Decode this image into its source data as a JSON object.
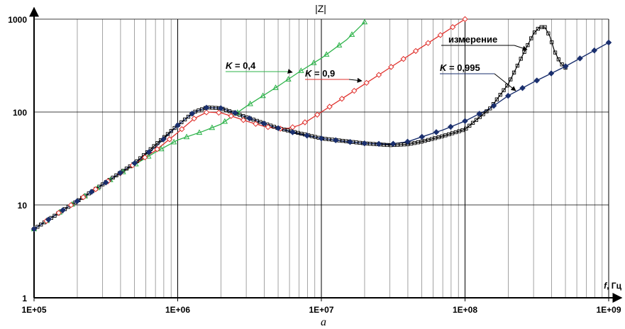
{
  "chart_data": {
    "type": "line",
    "title": "|Z|",
    "caption": "a",
    "x_scale": "log",
    "y_scale": "log",
    "xlim": [
      100000,
      1000000000
    ],
    "ylim": [
      1,
      1000
    ],
    "grid": true,
    "xlabel_italic": "f",
    "xlabel_rest": ", Гц",
    "x_ticks": [
      {
        "value": 100000,
        "label": "1E+05"
      },
      {
        "value": 1000000,
        "label": "1E+06"
      },
      {
        "value": 10000000,
        "label": "1E+07"
      },
      {
        "value": 100000000,
        "label": "1E+08"
      },
      {
        "value": 1000000000,
        "label": "1E+09"
      }
    ],
    "y_ticks": [
      {
        "value": 1,
        "label": "1"
      },
      {
        "value": 10,
        "label": "10"
      },
      {
        "value": 100,
        "label": "100"
      },
      {
        "value": 1000,
        "label": "1000"
      }
    ],
    "series": [
      {
        "key": "k04",
        "label_k": "K",
        "label_rest": " = 0,4",
        "color": "#2db34a",
        "marker": "triangle",
        "x": [
          100000,
          150000,
          200000,
          300000,
          500000,
          700000,
          1000000,
          1500000,
          2000000,
          3000000,
          5000000,
          7000000,
          10000000,
          15000000,
          20000000
        ],
        "y": [
          5.5,
          8.3,
          11,
          16.5,
          27,
          37,
          50,
          62,
          74,
          115,
          190,
          270,
          380,
          600,
          930
        ]
      },
      {
        "key": "k09",
        "label_k": "K",
        "label_rest": " = 0,9",
        "color": "#e0302c",
        "marker": "diamond-open",
        "x": [
          100000,
          150000,
          200000,
          300000,
          500000,
          700000,
          1000000,
          1300000,
          1600000,
          2000000,
          2500000,
          3000000,
          4000000,
          5000000,
          6000000,
          7000000,
          8000000,
          10000000,
          15000000,
          20000000,
          30000000,
          50000000,
          70000000,
          100000000
        ],
        "y": [
          5.5,
          8.3,
          11,
          16.5,
          27.5,
          38.5,
          60,
          85,
          100,
          98,
          88,
          80,
          70,
          66,
          67,
          72,
          80,
          100,
          150,
          200,
          300,
          500,
          700,
          1000
        ]
      },
      {
        "key": "k0995",
        "label_k": "K",
        "label_rest": " = 0,995",
        "color": "#1a2f6e",
        "marker": "diamond-filled",
        "x": [
          100000,
          150000,
          200000,
          300000,
          500000,
          700000,
          1000000,
          1300000,
          1600000,
          2000000,
          2500000,
          3000000,
          4000000,
          5000000,
          7000000,
          10000000,
          15000000,
          20000000,
          30000000,
          40000000,
          50000000,
          70000000,
          100000000,
          150000000,
          200000000,
          300000000,
          500000000,
          1000000000
        ],
        "y": [
          5.5,
          8.3,
          11,
          16.5,
          28,
          42,
          72,
          100,
          112,
          110,
          98,
          88,
          75,
          67,
          58,
          52,
          48,
          46,
          45,
          48,
          54,
          64,
          80,
          110,
          150,
          210,
          310,
          560
        ]
      },
      {
        "key": "meas",
        "label_k": "",
        "label_rest": "измерение",
        "color": "#000000",
        "marker": "square-open",
        "x": [
          100000,
          200000,
          500000,
          1000000,
          1300000,
          1600000,
          2000000,
          3000000,
          5000000,
          10000000,
          20000000,
          30000000,
          40000000,
          50000000,
          70000000,
          100000000,
          150000000,
          200000000,
          250000000,
          300000000,
          330000000,
          360000000,
          390000000,
          420000000,
          460000000,
          500000000
        ],
        "y": [
          5.5,
          11,
          28,
          72,
          100,
          112,
          110,
          88,
          67,
          52,
          46,
          44,
          45,
          48,
          55,
          65,
          110,
          200,
          400,
          700,
          820,
          820,
          650,
          450,
          340,
          300
        ]
      }
    ]
  }
}
